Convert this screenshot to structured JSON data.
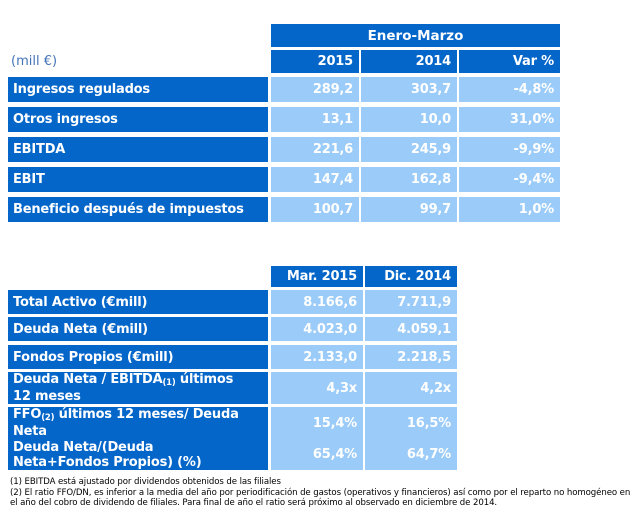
{
  "colors": {
    "header_blue": "#0566CA",
    "cell_blue": "#9BCBF8",
    "unit_text_blue": "#4374B9",
    "value_text": "#FFFFFF",
    "footnote_text": "#000000",
    "page_background": "#FFFFFF"
  },
  "table1": {
    "unit_label": "(mill €)",
    "period_header": "Enero-Marzo",
    "columns": [
      "2015",
      "2014",
      "Var %"
    ],
    "rows": [
      {
        "label": "Ingresos regulados",
        "values": [
          "289,2",
          "303,7",
          "-4,8%"
        ]
      },
      {
        "label": "Otros ingresos",
        "values": [
          "13,1",
          "10,0",
          "31,0%"
        ]
      },
      {
        "label": "EBITDA",
        "values": [
          "221,6",
          "245,9",
          "-9,9%"
        ]
      },
      {
        "label": "EBIT",
        "values": [
          "147,4",
          "162,8",
          "-9,4%"
        ]
      },
      {
        "label": "Beneficio después de impuestos",
        "values": [
          "100,7",
          "99,7",
          "1,0%"
        ]
      }
    ]
  },
  "table2": {
    "columns": [
      "Mar. 2015",
      "Dic. 2014"
    ],
    "rows": [
      {
        "label_parts": [
          {
            "text": "Total Activo (€mill)"
          }
        ],
        "values": [
          "8.166,6",
          "7.711,9"
        ]
      },
      {
        "label_parts": [
          {
            "text": "Deuda Neta (€mill)"
          }
        ],
        "values": [
          "4.023,0",
          "4.059,1"
        ]
      },
      {
        "label_parts": [
          {
            "text": "Fondos Propios (€mill)"
          }
        ],
        "values": [
          "2.133,0",
          "2.218,5"
        ]
      },
      {
        "label_parts": [
          {
            "text": "Deuda Neta / EBITDA"
          },
          {
            "text": "(1)",
            "sub": true
          },
          {
            "text": " últimos\n12 meses"
          }
        ],
        "values": [
          "4,3x",
          "4,2x"
        ]
      },
      {
        "label_parts": [
          {
            "text": "FFO"
          },
          {
            "text": "(2)",
            "sub": true
          },
          {
            "text": " últimos 12 meses/ Deuda\nNeta"
          }
        ],
        "values": [
          "15,4%",
          "16,5%"
        ]
      },
      {
        "label_parts": [
          {
            "text": "Deuda Neta/(Deuda\nNeta+Fondos Propios) (%)"
          }
        ],
        "values": [
          "65,4%",
          "64,7%"
        ]
      }
    ]
  },
  "footnotes": [
    "(1) EBITDA está ajustado por dividendos obtenidos de las filiales",
    "(2) El ratio FFO/DN, es inferior a la media del año por periodificación de gastos (operativos y financieros) así como por el reparto no homogéneo en el año del cobro de dividendo de filiales. Para final de año el ratio será próximo al observado en diciembre de 2014."
  ]
}
